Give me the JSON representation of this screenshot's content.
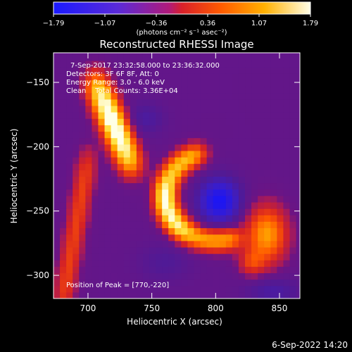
{
  "chart_data": {
    "type": "heatmap",
    "title": "Reconstructed RHESSI Image",
    "xlabel": "Heliocentric X (arcsec)",
    "ylabel": "Heliocentric Y (arcsec)",
    "xlim": [
      673,
      866
    ],
    "ylim": [
      -318,
      -127
    ],
    "xticks": [
      700,
      750,
      800,
      850
    ],
    "yticks": [
      -150,
      -200,
      -250,
      -300
    ],
    "xtick_labels": [
      "700",
      "750",
      "800",
      "850"
    ],
    "ytick_labels": [
      "−150",
      "−200",
      "−250",
      "−300"
    ],
    "colorbar": {
      "min": -1.79,
      "max": 1.79,
      "ticks": [
        "−1.79",
        "−1.07",
        "−0.36",
        "0.36",
        "1.07",
        "1.79"
      ],
      "unit_label": "(photons cm⁻² s⁻¹ asec⁻²)"
    },
    "annotations": {
      "time_range": "7-Sep-2017 23:32:58.000 to 23:36:32.000",
      "detectors": "Detectors: 3F 6F 8F, Att: 0",
      "energy_range": "Energy Range: 3.0 - 6.0 keV",
      "clean_counts": "Clean    Total Counts: 3.36E+04",
      "peak": "Position of Peak = [770,-220]"
    },
    "peak": {
      "x": 770,
      "y": -220
    },
    "grid": false
  },
  "footer": {
    "date": "6-Sep-2022 14:20"
  }
}
